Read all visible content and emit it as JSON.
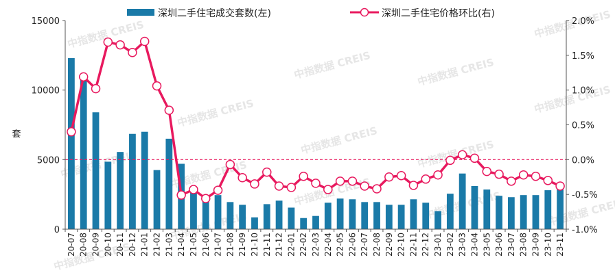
{
  "watermark": "中指数据 CREIS",
  "chart_data": {
    "type": "bar+line",
    "categories": [
      "20-07",
      "20-08",
      "20-09",
      "20-10",
      "20-11",
      "20-12",
      "21-01",
      "21-02",
      "21-03",
      "21-04",
      "21-05",
      "21-06",
      "21-07",
      "21-08",
      "21-09",
      "21-10",
      "21-11",
      "21-12",
      "22-01",
      "22-02",
      "22-03",
      "22-04",
      "22-05",
      "22-06",
      "22-07",
      "22-08",
      "22-09",
      "22-10",
      "22-11",
      "22-12",
      "23-01",
      "23-02",
      "23-03",
      "23-04",
      "23-05",
      "23-06",
      "23-07",
      "23-08",
      "23-09",
      "23-10",
      "23-11"
    ],
    "series": [
      {
        "name": "深圳二手住宅成交套数(左)",
        "type": "bar",
        "axis": "left",
        "color": "#1a7aa8",
        "values": [
          12300,
          11100,
          8400,
          4850,
          5550,
          6850,
          7000,
          4250,
          6500,
          4700,
          2650,
          2250,
          2450,
          1950,
          1750,
          850,
          1800,
          2050,
          1550,
          800,
          950,
          1900,
          2200,
          2150,
          1950,
          1950,
          1750,
          1750,
          2150,
          1900,
          1300,
          2550,
          4000,
          3100,
          2850,
          2400,
          2300,
          2450,
          2450,
          2800,
          2850
        ]
      },
      {
        "name": "深圳二手住宅价格环比(右)",
        "type": "line",
        "axis": "right",
        "color": "#e8195e",
        "values": [
          0.4,
          1.19,
          1.02,
          1.69,
          1.65,
          1.54,
          1.7,
          1.06,
          0.71,
          -0.51,
          -0.43,
          -0.56,
          -0.44,
          -0.07,
          -0.26,
          -0.35,
          -0.18,
          -0.38,
          -0.4,
          -0.24,
          -0.34,
          -0.43,
          -0.31,
          -0.31,
          -0.38,
          -0.42,
          -0.25,
          -0.23,
          -0.37,
          -0.28,
          -0.22,
          -0.01,
          0.07,
          0.02,
          -0.17,
          -0.21,
          -0.31,
          -0.22,
          -0.24,
          -0.3,
          -0.38
        ]
      }
    ],
    "ylabel_left": "套",
    "ylim_left": [
      0,
      15000
    ],
    "yticks_left": [
      "0",
      "5000",
      "10000",
      "15000"
    ],
    "ylim_right": [
      -1.0,
      2.0
    ],
    "yticks_right": [
      "-1.0%",
      "-0.5%",
      "0.0%",
      "0.5%",
      "1.0%",
      "1.5%",
      "2.0%"
    ],
    "reference_line": {
      "axis": "right",
      "value": 0.0,
      "style": "dashed",
      "color": "#e8195e"
    },
    "legend_position": "top",
    "grid": false
  }
}
